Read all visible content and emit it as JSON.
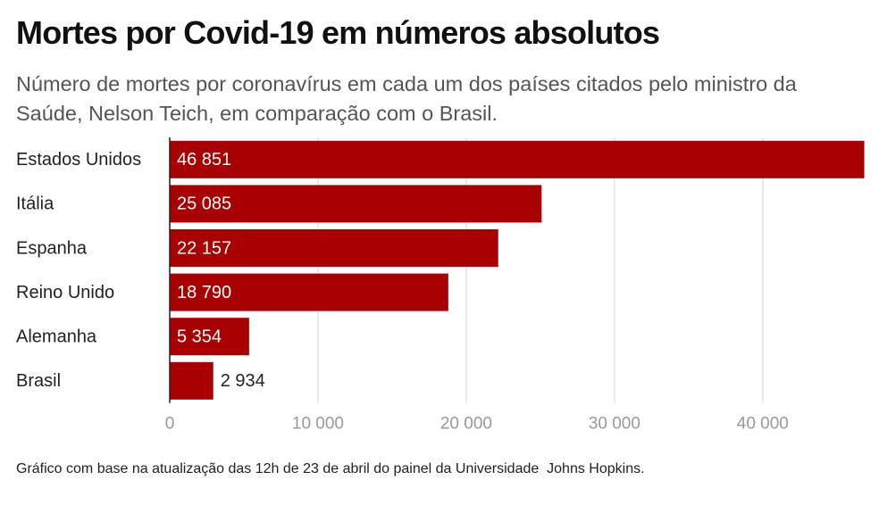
{
  "chart_data": {
    "type": "bar",
    "orientation": "horizontal",
    "title": "Mortes por Covid-19 em números absolutos",
    "subtitle": "Número de mortes por coronavírus em cada um dos países citados pelo ministro da Saúde, Nelson Teich, em comparação com o Brasil.",
    "categories": [
      "Estados Unidos",
      "Itália",
      "Espanha",
      "Reino Unido",
      "Alemanha",
      "Brasil"
    ],
    "values": [
      46851,
      25085,
      22157,
      18790,
      5354,
      2934
    ],
    "value_labels": [
      "46 851",
      "25 085",
      "22 157",
      "18 790",
      "5 354",
      "2 934"
    ],
    "color": "#a80000",
    "xlim": [
      0,
      47000
    ],
    "xticks": [
      0,
      {
        "value": 10000,
        "label": "10 000"
      },
      {
        "value": 20000,
        "label": "20 000"
      },
      {
        "value": 30000,
        "label": "30 000"
      },
      {
        "value": 40000,
        "label": "40 000"
      }
    ],
    "grid": true,
    "note": "Gráfico com base na atualização das 12h de 23 de abril do painel da Universidade  Johns Hopkins."
  }
}
